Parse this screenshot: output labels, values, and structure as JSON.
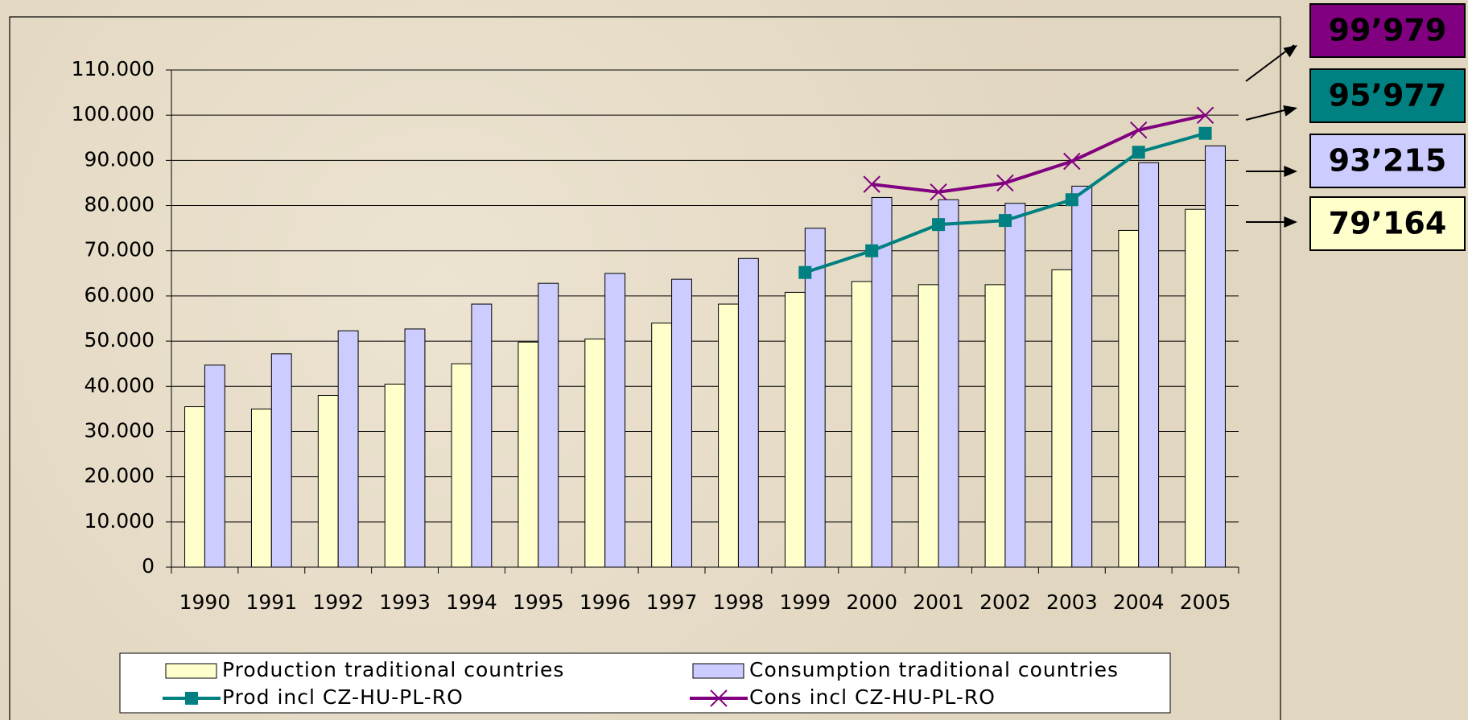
{
  "chart_data": {
    "type": "bar",
    "categories": [
      "1990",
      "1991",
      "1992",
      "1993",
      "1994",
      "1995",
      "1996",
      "1997",
      "1998",
      "1999",
      "2000",
      "2001",
      "2002",
      "2003",
      "2004",
      "2005"
    ],
    "series": [
      {
        "name": "Production traditional countries",
        "type": "bar",
        "color": "#ffffcc",
        "values": [
          35500,
          35000,
          38000,
          40500,
          45000,
          49800,
          50500,
          54000,
          58200,
          60800,
          63200,
          62500,
          62500,
          65800,
          74500,
          79164
        ]
      },
      {
        "name": "Consumption traditional countries",
        "type": "bar",
        "color": "#ccccff",
        "values": [
          44700,
          47200,
          52300,
          52700,
          58200,
          62800,
          65000,
          63700,
          68300,
          75000,
          81800,
          81300,
          80500,
          84300,
          89500,
          93215
        ]
      },
      {
        "name": "Prod incl CZ-HU-PL-RO",
        "type": "line",
        "marker": "square",
        "color": "#008080",
        "values": [
          null,
          null,
          null,
          null,
          null,
          null,
          null,
          null,
          null,
          65200,
          70000,
          75800,
          76700,
          81300,
          91800,
          95977
        ]
      },
      {
        "name": "Cons incl CZ-HU-PL-RO",
        "type": "line",
        "marker": "x",
        "color": "#800080",
        "values": [
          null,
          null,
          null,
          null,
          null,
          null,
          null,
          null,
          null,
          null,
          84700,
          83000,
          85000,
          89800,
          96700,
          99979
        ]
      }
    ],
    "ylim": [
      0,
      110000
    ],
    "yticks": [
      0,
      {
        "value": 10000,
        "label": "10.000"
      },
      {
        "value": 20000,
        "label": "20.000"
      },
      {
        "value": 30000,
        "label": "30.000"
      },
      {
        "value": 40000,
        "label": "40.000"
      },
      {
        "value": 50000,
        "label": "50.000"
      },
      {
        "value": 60000,
        "label": "60.000"
      },
      {
        "value": 70000,
        "label": "70.000"
      },
      {
        "value": 80000,
        "label": "80.000"
      },
      {
        "value": 90000,
        "label": "90.000"
      },
      {
        "value": 100000,
        "label": "100.000"
      },
      {
        "value": 110000,
        "label": "110.000"
      }
    ],
    "grid": true,
    "legend": "bottom",
    "callouts": [
      {
        "text": "99’979",
        "color": "#800080",
        "text_color": "#000000"
      },
      {
        "text": "95’977",
        "color": "#008080",
        "text_color": "#000000"
      },
      {
        "text": "93’215",
        "color": "#ccccff",
        "text_color": "#000000"
      },
      {
        "text": "79’164",
        "color": "#ffffcc",
        "text_color": "#000000"
      }
    ]
  }
}
